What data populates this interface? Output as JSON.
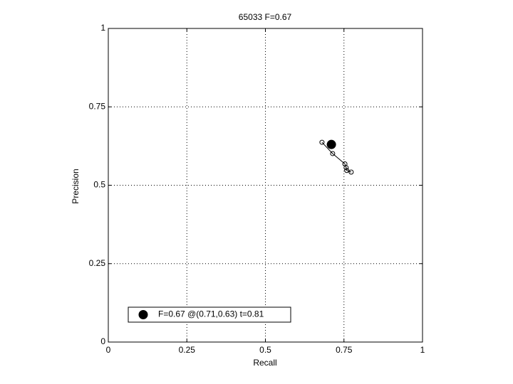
{
  "chart_data": {
    "type": "line",
    "title": "65033 F=0.67",
    "x_label": "Recall",
    "y_label": "Precision",
    "xlim": [
      0,
      1
    ],
    "ylim": [
      0,
      1
    ],
    "xticks": [
      0,
      0.25,
      0.5,
      0.75,
      1
    ],
    "yticks": [
      0,
      0.25,
      0.5,
      0.75,
      1
    ],
    "grid": true,
    "legend_loc": "lower left",
    "series": [
      {
        "color": "#000000",
        "x": [
          0.68,
          0.714,
          0.753,
          0.757,
          0.759,
          0.773
        ],
        "values": [
          0.637,
          0.601,
          0.568,
          0.556,
          0.547,
          0.542
        ]
      },
      {
        "name": "F=0.67 @(0.71,0.63) t=0.81",
        "color": "#000000",
        "x": [
          0.71
        ],
        "values": [
          0.63
        ]
      }
    ]
  }
}
